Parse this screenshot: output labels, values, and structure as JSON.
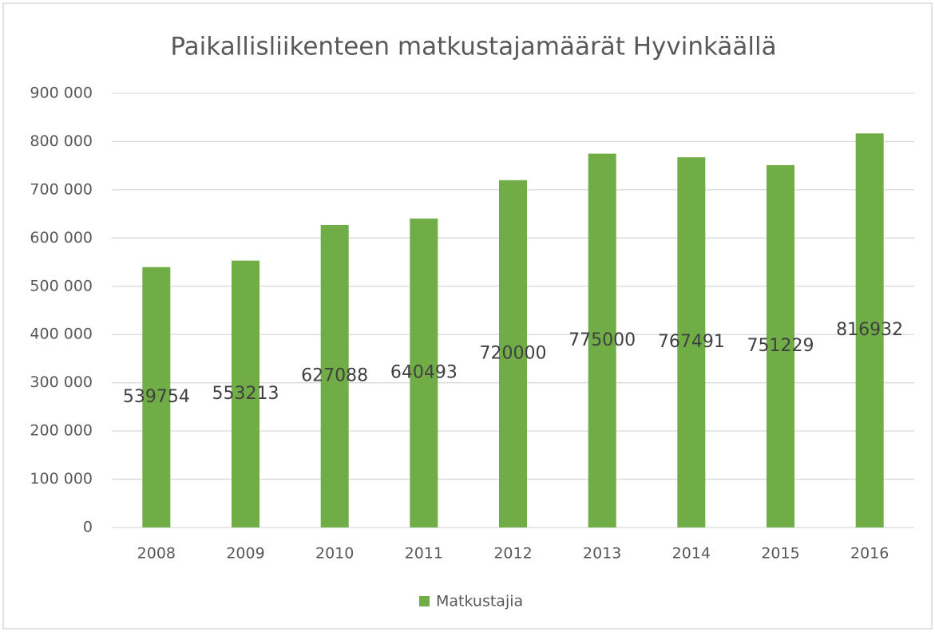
{
  "chart_data": {
    "type": "bar",
    "title": "Paikallisliikenteen matkustajamäärät Hyvinkäällä",
    "categories": [
      "2008",
      "2009",
      "2010",
      "2011",
      "2012",
      "2013",
      "2014",
      "2015",
      "2016"
    ],
    "series": [
      {
        "name": "Matkustajia",
        "color": "#70ad47",
        "values": [
          539754,
          553213,
          627088,
          640493,
          720000,
          775000,
          767491,
          751229,
          816932
        ]
      }
    ],
    "ylim": [
      0,
      900000
    ],
    "yticks": [
      0,
      {
        "value": 100000,
        "label": "100 000"
      },
      {
        "value": 200000,
        "label": "200 000"
      },
      {
        "value": 300000,
        "label": "300 000"
      },
      {
        "value": 400000,
        "label": "400 000"
      },
      {
        "value": 500000,
        "label": "500 000"
      },
      {
        "value": 600000,
        "label": "600 000"
      },
      {
        "value": 700000,
        "label": "700 000"
      },
      {
        "value": 800000,
        "label": "800 000"
      },
      {
        "value": 900000,
        "label": "900 000"
      }
    ],
    "grid": true,
    "legend": "bottom"
  }
}
